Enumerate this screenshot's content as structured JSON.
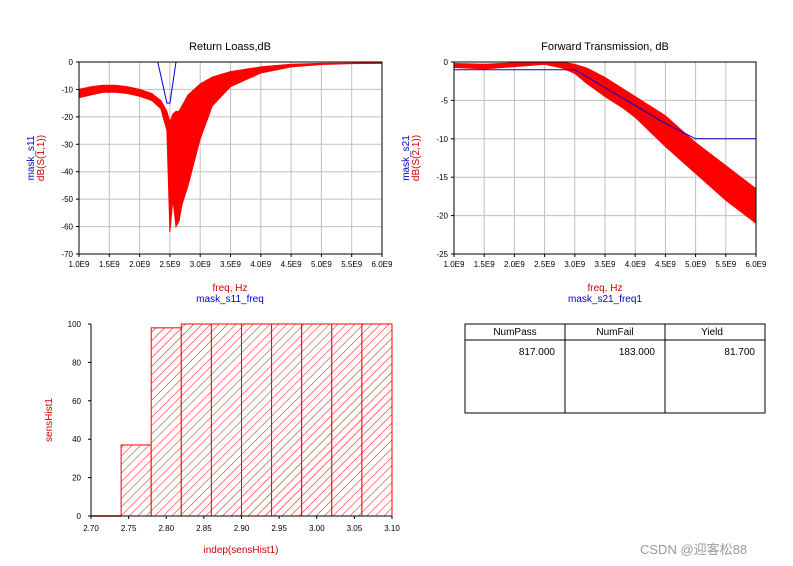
{
  "colors": {
    "data": "#ff0000",
    "mask": "#0000cc",
    "grid": "#c0c0c0",
    "label_red": "#cc0000",
    "label_blue": "#0000cc"
  },
  "chart_data": [
    {
      "id": "return_loss",
      "type": "line",
      "title": "Return Loass,dB",
      "xlabel": "freq, Hz",
      "xlabel2": "mask_s11_freq",
      "ylabel": "dB(S(1,1))",
      "ylabel2": "mask_s11",
      "xlim": [
        1000000000.0,
        6000000000.0
      ],
      "ylim": [
        -70,
        0
      ],
      "x_ticks": [
        "1.0E9",
        "1.5E9",
        "2.0E9",
        "2.5E9",
        "3.0E9",
        "3.5E9",
        "4.0E9",
        "4.5E9",
        "5.0E9",
        "5.5E9",
        "6.0E9"
      ],
      "y_ticks": [
        "0",
        "-10",
        "-20",
        "-30",
        "-40",
        "-50",
        "-60",
        "-70"
      ],
      "grid": true,
      "series": [
        {
          "x": [
            1000000000.0,
            1200000000.0,
            1400000000.0,
            1600000000.0,
            1800000000.0,
            2000000000.0,
            2200000000.0,
            2350000000.0,
            2450000000.0,
            2500000000.0,
            2550000000.0,
            2600000000.0,
            2650000000.0,
            2700000000.0,
            2800000000.0,
            3000000000.0,
            3200000000.0,
            3500000000.0,
            4000000000.0,
            4500000000.0,
            5000000000.0,
            5500000000.0,
            6000000000.0
          ],
          "upper": [
            -10,
            -9,
            -8.5,
            -8.5,
            -9,
            -10,
            -11.5,
            -14,
            -18,
            -22,
            -19,
            -18,
            -18,
            -16,
            -12,
            -8,
            -5.5,
            -3.5,
            -1.8,
            -0.8,
            -0.5,
            -0.4,
            -0.3
          ],
          "lower": [
            -13,
            -12,
            -11,
            -11,
            -11.5,
            -12.5,
            -14,
            -17,
            -25,
            -62,
            -50,
            -60,
            -58,
            -52,
            -45,
            -28,
            -16,
            -9,
            -4,
            -1.8,
            -0.9,
            -0.6,
            -0.5
          ]
        },
        {
          "x": [
            2300000000.0,
            2450000000.0,
            2500000000.0,
            2600000000.0
          ],
          "y": [
            0,
            -15,
            -15,
            0
          ]
        }
      ]
    },
    {
      "id": "forward_transmission",
      "type": "line",
      "title": "Forward Transmission, dB",
      "xlabel": "freq, Hz",
      "xlabel2": "mask_s21_freq1",
      "ylabel": "dB(S(2,1))",
      "ylabel2": "mask_s21",
      "xlim": [
        1000000000.0,
        6000000000.0
      ],
      "ylim": [
        -25,
        0
      ],
      "x_ticks": [
        "1.0E9",
        "1.5E9",
        "2.0E9",
        "2.5E9",
        "3.0E9",
        "3.5E9",
        "4.0E9",
        "4.5E9",
        "5.0E9",
        "5.5E9",
        "6.0E9"
      ],
      "y_ticks": [
        "0",
        "-5",
        "-10",
        "-15",
        "-20",
        "-25"
      ],
      "grid": true,
      "series": [
        {
          "x": [
            1000000000.0,
            1500000000.0,
            2000000000.0,
            2500000000.0,
            2800000000.0,
            3000000000.0,
            3200000000.0,
            3500000000.0,
            3800000000.0,
            4000000000.0,
            4500000000.0,
            5000000000.0,
            5500000000.0,
            6000000000.0
          ],
          "upper": [
            -0.2,
            -0.3,
            -0.1,
            0,
            0,
            -0.3,
            -0.8,
            -2,
            -3.5,
            -4.5,
            -7,
            -10.5,
            -13.5,
            -16.5
          ],
          "lower": [
            -0.7,
            -0.9,
            -0.6,
            -0.3,
            -0.8,
            -1.5,
            -2.8,
            -4.5,
            -6,
            -7.2,
            -11,
            -14.5,
            -18,
            -21
          ]
        },
        {
          "x": [
            1000000000.0,
            3000000000.0,
            4500000000.0,
            5000000000.0,
            6000000000.0
          ],
          "y": [
            -1,
            -1,
            -8,
            -10,
            -10
          ]
        }
      ]
    },
    {
      "id": "sensitivity_histogram",
      "type": "bar",
      "xlabel": "indep(sensHist1)",
      "ylabel": "sensHist1",
      "xlim": [
        2.7,
        3.1
      ],
      "ylim": [
        0,
        100
      ],
      "x_ticks": [
        "2.70",
        "2.75",
        "2.80",
        "2.85",
        "2.90",
        "2.95",
        "3.00",
        "3.05",
        "3.10"
      ],
      "y_ticks": [
        "0",
        "20",
        "40",
        "60",
        "80",
        "100"
      ],
      "bins": [
        {
          "from": 2.7,
          "to": 2.72,
          "value": 0
        },
        {
          "from": 2.72,
          "to": 2.74,
          "value": 0
        },
        {
          "from": 2.74,
          "to": 2.78,
          "value": 37
        },
        {
          "from": 2.78,
          "to": 2.82,
          "value": 98
        },
        {
          "from": 2.82,
          "to": 2.86,
          "value": 100
        },
        {
          "from": 2.86,
          "to": 2.9,
          "value": 100
        },
        {
          "from": 2.9,
          "to": 2.94,
          "value": 100
        },
        {
          "from": 2.94,
          "to": 2.98,
          "value": 100
        },
        {
          "from": 2.98,
          "to": 3.02,
          "value": 100
        },
        {
          "from": 3.02,
          "to": 3.06,
          "value": 100
        },
        {
          "from": 3.06,
          "to": 3.1,
          "value": 100
        }
      ]
    },
    {
      "id": "yield_table",
      "type": "table",
      "columns": [
        "NumPass",
        "NumFail",
        "Yield"
      ],
      "rows": [
        [
          "817.000",
          "183.000",
          "81.700"
        ]
      ]
    }
  ],
  "watermark": "CSDN @迎客松88"
}
